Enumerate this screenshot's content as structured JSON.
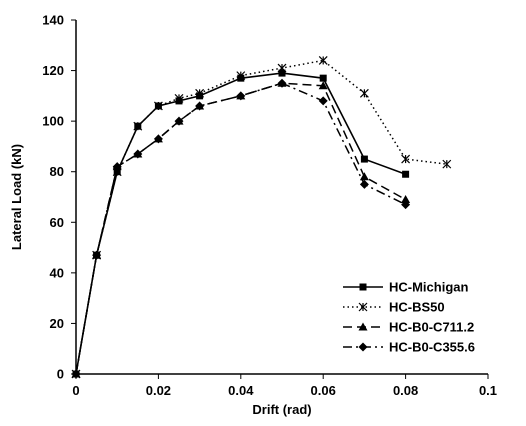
{
  "chart_data": {
    "type": "line",
    "title": "",
    "xlabel": "Drift (rad)",
    "ylabel": "Lateral Load (kN)",
    "xlim": [
      0,
      0.1
    ],
    "ylim": [
      0,
      140
    ],
    "xticks": [
      "0",
      "0.02",
      "0.04",
      "0.06",
      "0.08",
      "0.1"
    ],
    "yticks": [
      "0",
      "20",
      "40",
      "60",
      "80",
      "100",
      "120",
      "140"
    ],
    "grid": false,
    "legend_position": "bottom-right",
    "series": [
      {
        "name": "HC-Michigan",
        "line": "solid",
        "marker": "square",
        "color": "#000000",
        "x": [
          0,
          0.005,
          0.01,
          0.015,
          0.02,
          0.025,
          0.03,
          0.04,
          0.05,
          0.06,
          0.07,
          0.08
        ],
        "y": [
          0,
          47,
          80,
          98,
          106,
          108,
          110,
          117,
          119,
          117,
          85,
          79
        ]
      },
      {
        "name": "HC-BS50",
        "line": "dotted",
        "marker": "asterisk",
        "color": "#000000",
        "x": [
          0,
          0.005,
          0.01,
          0.015,
          0.02,
          0.025,
          0.03,
          0.04,
          0.05,
          0.06,
          0.07,
          0.08,
          0.09
        ],
        "y": [
          0,
          47,
          80,
          98,
          106,
          109,
          111,
          118,
          121,
          124,
          111,
          85,
          83
        ]
      },
      {
        "name": "HC-B0-C711.2",
        "line": "long-dash",
        "marker": "triangle",
        "color": "#000000",
        "x": [
          0,
          0.005,
          0.01,
          0.015,
          0.02,
          0.025,
          0.03,
          0.04,
          0.05,
          0.06,
          0.07,
          0.08
        ],
        "y": [
          0,
          47,
          82,
          87,
          93,
          100,
          106,
          110,
          115,
          114,
          78,
          69
        ]
      },
      {
        "name": "HC-B0-C355.6",
        "line": "dash-dot",
        "marker": "diamond",
        "color": "#000000",
        "x": [
          0,
          0.005,
          0.01,
          0.015,
          0.02,
          0.025,
          0.03,
          0.04,
          0.05,
          0.06,
          0.07,
          0.08
        ],
        "y": [
          0,
          47,
          82,
          87,
          93,
          100,
          106,
          110,
          115,
          108,
          75,
          67
        ]
      }
    ]
  }
}
